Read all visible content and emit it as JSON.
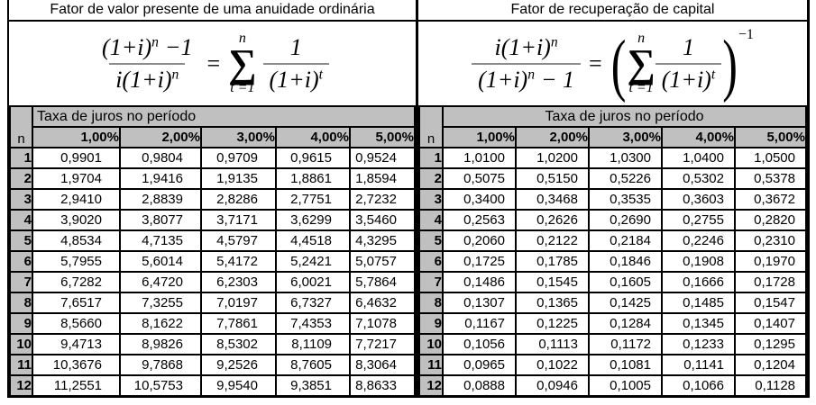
{
  "panels": [
    {
      "title": "Fator de valor presente de uma anuidade ordinária",
      "formula": {
        "num_base": "(1+i)",
        "num_sup": "n",
        "num_tail": "−1",
        "den_base": "i(1+i)",
        "den_sup": "n",
        "eq": "=",
        "sum_top": "n",
        "sum_sym": "∑",
        "sum_bot": "t =1",
        "r_num": "1",
        "r_den_base": "(1+i)",
        "r_den_sup": "t"
      },
      "table": {
        "group_header": "Taxa de juros no período",
        "n_label": "n",
        "rate_headers": [
          "1,00%",
          "2,00%",
          "3,00%",
          "4,00%",
          "5,00%"
        ],
        "rows": [
          [
            "1",
            "0,9901",
            "0,9804",
            "0,9709",
            "0,9615",
            "0,9524"
          ],
          [
            "2",
            "1,9704",
            "1,9416",
            "1,9135",
            "1,8861",
            "1,8594"
          ],
          [
            "3",
            "2,9410",
            "2,8839",
            "2,8286",
            "2,7751",
            "2,7232"
          ],
          [
            "4",
            "3,9020",
            "3,8077",
            "3,7171",
            "3,6299",
            "3,5460"
          ],
          [
            "5",
            "4,8534",
            "4,7135",
            "4,5797",
            "4,4518",
            "4,3295"
          ],
          [
            "6",
            "5,7955",
            "5,6014",
            "5,4172",
            "5,2421",
            "5,0757"
          ],
          [
            "7",
            "6,7282",
            "6,4720",
            "6,2303",
            "6,0021",
            "5,7864"
          ],
          [
            "8",
            "7,6517",
            "7,3255",
            "7,0197",
            "6,7327",
            "6,4632"
          ],
          [
            "9",
            "8,5660",
            "8,1622",
            "7,7861",
            "7,4353",
            "7,1078"
          ],
          [
            "10",
            "9,4713",
            "8,9826",
            "8,5302",
            "8,1109",
            "7,7217"
          ],
          [
            "11",
            "10,3676",
            "9,7868",
            "9,2526",
            "8,7605",
            "8,3064"
          ],
          [
            "12",
            "11,2551",
            "10,5753",
            "9,9540",
            "9,3851",
            "8,8633"
          ]
        ]
      }
    },
    {
      "title": "Fator de recuperação de capital",
      "formula": {
        "num_base": "i(1+i)",
        "num_sup": "n",
        "den_base": "(1+i)",
        "den_sup": "n",
        "den_tail": "− 1",
        "eq": "=",
        "paren_open": "(",
        "paren_close": ")",
        "outer_sup": "−1",
        "sum_top": "n",
        "sum_sym": "∑",
        "sum_bot": "t =1",
        "r_num": "1",
        "r_den_base": "(1+i)",
        "r_den_sup": "t"
      },
      "table": {
        "group_header": "Taxa de juros no período",
        "n_label": "n",
        "rate_headers": [
          "1,00%",
          "2,00%",
          "3,00%",
          "4,00%",
          "5,00%"
        ],
        "rows": [
          [
            "1",
            "1,0100",
            "1,0200",
            "1,0300",
            "1,0400",
            "1,0500"
          ],
          [
            "2",
            "0,5075",
            "0,5150",
            "0,5226",
            "0,5302",
            "0,5378"
          ],
          [
            "3",
            "0,3400",
            "0,3468",
            "0,3535",
            "0,3603",
            "0,3672"
          ],
          [
            "4",
            "0,2563",
            "0,2626",
            "0,2690",
            "0,2755",
            "0,2820"
          ],
          [
            "5",
            "0,2060",
            "0,2122",
            "0,2184",
            "0,2246",
            "0,2310"
          ],
          [
            "6",
            "0,1725",
            "0,1785",
            "0,1846",
            "0,1908",
            "0,1970"
          ],
          [
            "7",
            "0,1486",
            "0,1545",
            "0,1605",
            "0,1666",
            "0,1728"
          ],
          [
            "8",
            "0,1307",
            "0,1365",
            "0,1425",
            "0,1485",
            "0,1547"
          ],
          [
            "9",
            "0,1167",
            "0,1225",
            "0,1284",
            "0,1345",
            "0,1407"
          ],
          [
            "10",
            "0,1056",
            "0,1113",
            "0,1172",
            "0,1233",
            "0,1295"
          ],
          [
            "11",
            "0,0965",
            "0,1022",
            "0,1081",
            "0,1141",
            "0,1204"
          ],
          [
            "12",
            "0,0888",
            "0,0946",
            "0,1005",
            "0,1066",
            "0,1128"
          ]
        ]
      }
    }
  ],
  "colors": {
    "header_gray": "#c0c0c0",
    "grid_black": "#000000",
    "fraction_bar_gray": "#8c8c8c"
  }
}
